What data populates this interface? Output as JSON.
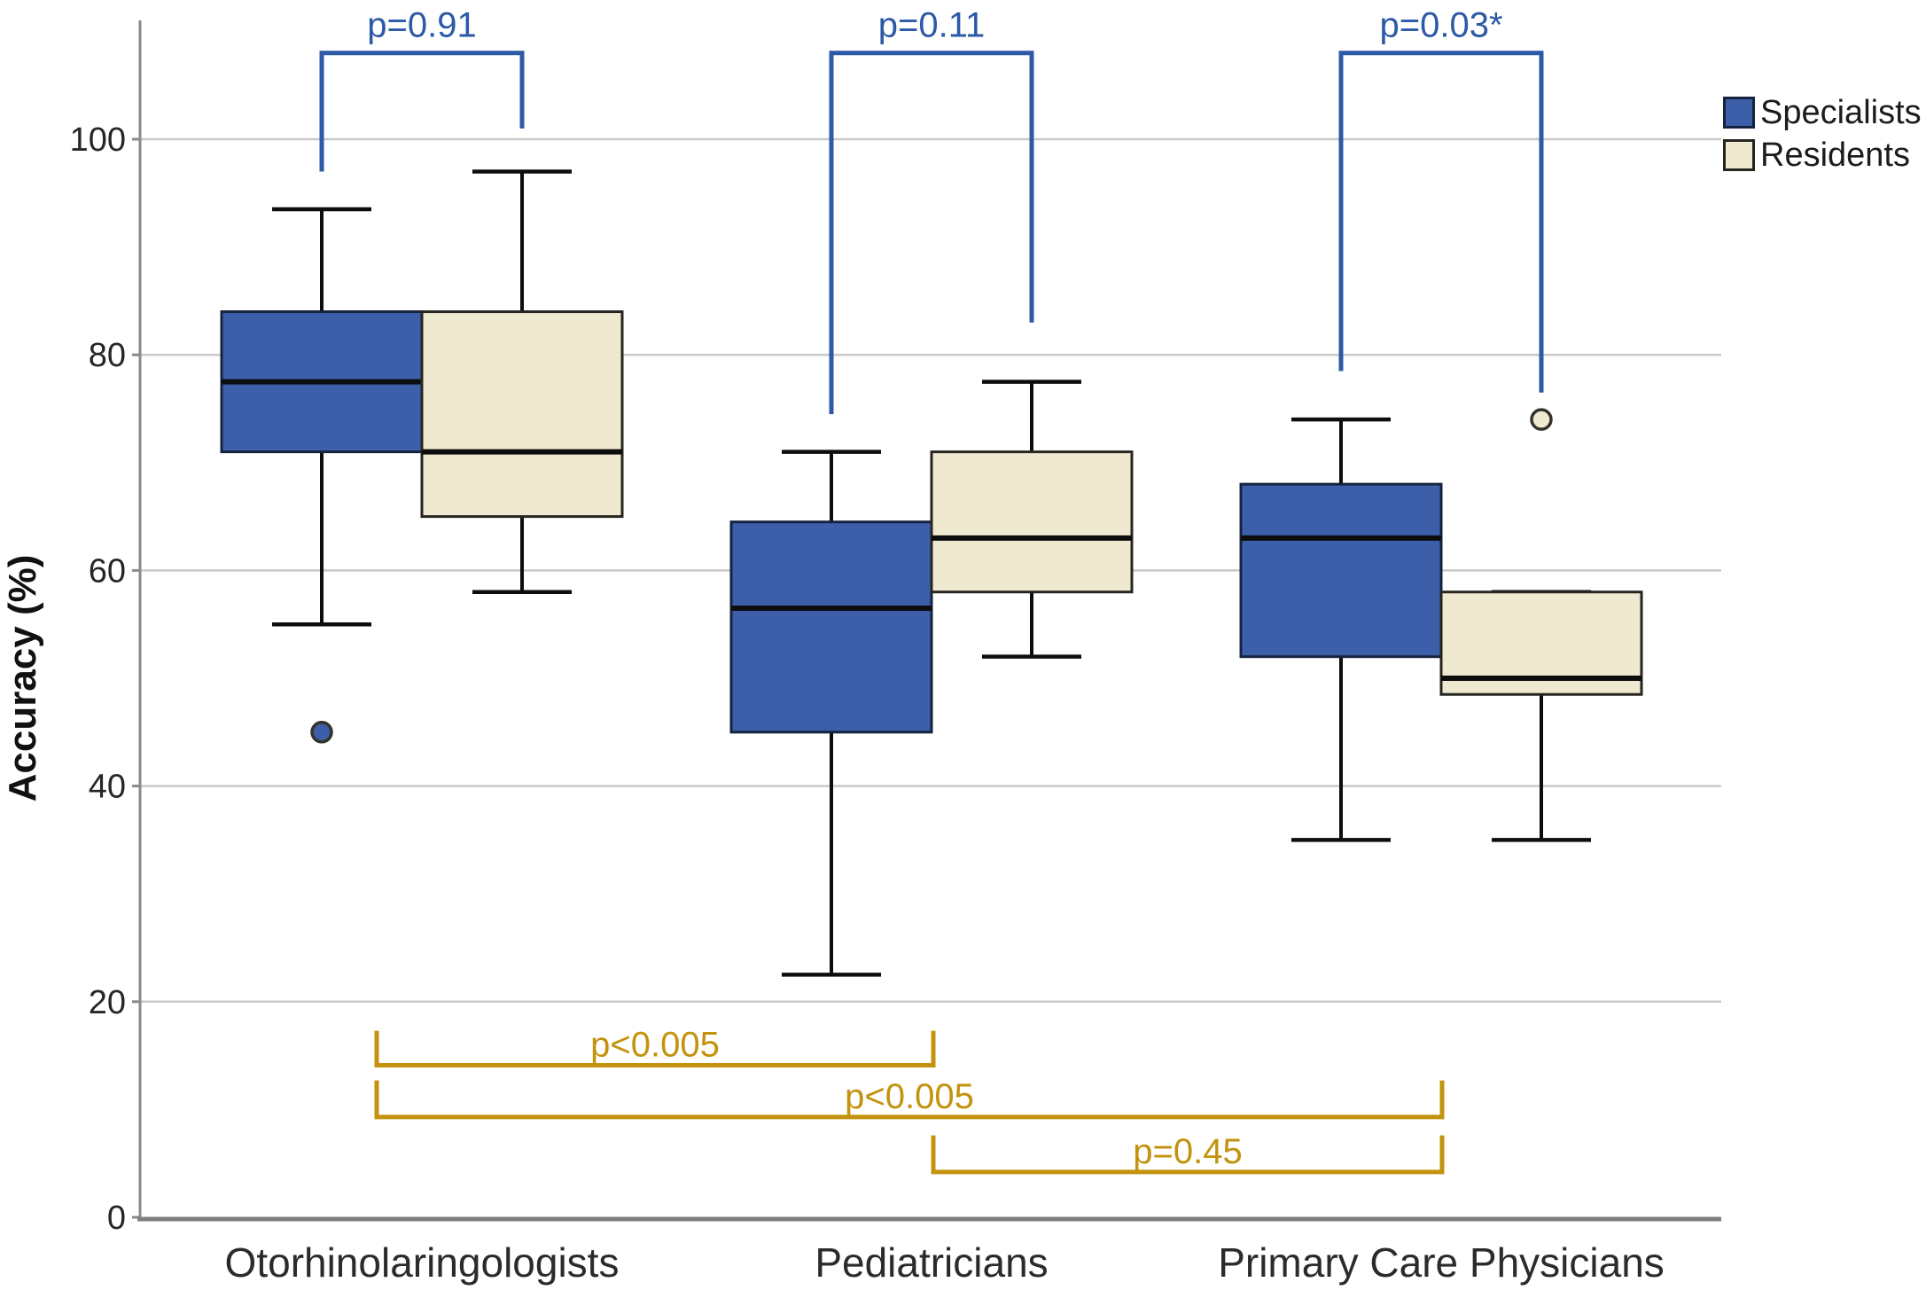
{
  "chart_data": {
    "type": "boxplot",
    "title": "",
    "xlabel": "",
    "ylabel": "Accuracy (%)",
    "ylim": [
      0,
      110
    ],
    "yticks": [
      0,
      20,
      40,
      60,
      80,
      100
    ],
    "grid": "horizontal",
    "legend_position": "top-right",
    "categories": [
      "Otorhinolaringologists",
      "Pediatricians",
      "Primary Care Physicians"
    ],
    "series": [
      {
        "name": "Specialists",
        "fill_color": "#3d5fa9",
        "border_color": "#16233f",
        "boxes": [
          {
            "whisker_low": 55,
            "q1": 71,
            "median": 77.5,
            "q3": 84,
            "whisker_high": 93.5,
            "outliers": [
              45
            ]
          },
          {
            "whisker_low": 22.5,
            "q1": 45,
            "median": 56.5,
            "q3": 64.5,
            "whisker_high": 71,
            "outliers": []
          },
          {
            "whisker_low": 35,
            "q1": 52,
            "median": 63,
            "q3": 68,
            "whisker_high": 74,
            "outliers": []
          }
        ]
      },
      {
        "name": "Residents",
        "fill_color": "#f0e9d2",
        "border_color": "#26261f",
        "boxes": [
          {
            "whisker_low": 58,
            "q1": 65,
            "median": 71,
            "q3": 84,
            "whisker_high": 97,
            "outliers": []
          },
          {
            "whisker_low": 52,
            "q1": 58,
            "median": 63,
            "q3": 71,
            "whisker_high": 77.5,
            "outliers": []
          },
          {
            "whisker_low": 35,
            "q1": 48.5,
            "median": 50,
            "q3": 58,
            "whisker_high": 58,
            "outliers": [
              74
            ]
          }
        ]
      }
    ],
    "comparisons_within_groups": [
      {
        "label": "p=0.91",
        "group": 0,
        "top": 108,
        "left_leg_end": 97,
        "right_leg_end": 101,
        "color": "#2d5aa6"
      },
      {
        "label": "p=0.11",
        "group": 1,
        "top": 108,
        "left_leg_end": 74.5,
        "right_leg_end": 83,
        "color": "#2d5aa6"
      },
      {
        "label": "p=0.03*",
        "group": 2,
        "top": 108,
        "left_leg_end": 78.5,
        "right_leg_end": 76.5,
        "color": "#2d5aa6"
      }
    ],
    "comparisons_between_groups": [
      {
        "label": "p<0.005",
        "from_group": 0,
        "to_group": 1,
        "bar_y": 14.1,
        "legs_rise_to": 17.3,
        "color": "#c3930e"
      },
      {
        "label": "p<0.005",
        "from_group": 0,
        "to_group": 2,
        "bar_y": 9.3,
        "legs_rise_to": 12.7,
        "color": "#c3930e"
      },
      {
        "label": "p=0.45",
        "from_group": 1,
        "to_group": 2,
        "bar_y": 4.2,
        "legs_rise_to": 7.6,
        "color": "#c3930e"
      }
    ],
    "legend": [
      "Specialists",
      "Residents"
    ],
    "colors": {
      "gridline": "#c9c9c9",
      "y_axis": "#8a8a8a",
      "x_axis": "#7f7f7f",
      "tick_text": "#262626",
      "category_text": "#2b2b2b",
      "median_whisker": "#0d0d0d",
      "top_bracket": "#2d5aa6",
      "bottom_bracket": "#c3930e"
    }
  }
}
